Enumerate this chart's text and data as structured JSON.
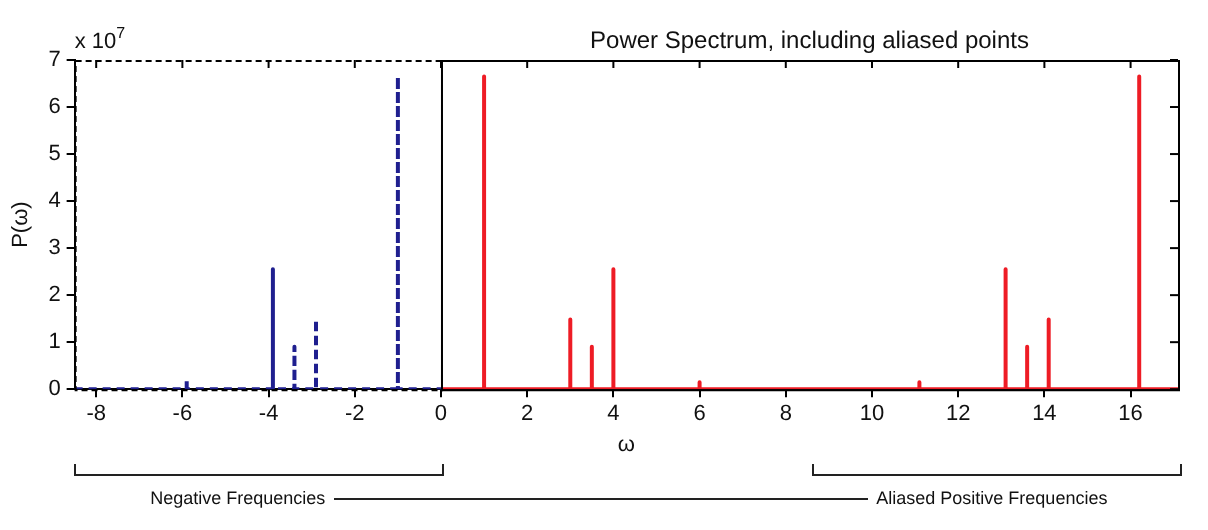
{
  "chart_data": {
    "type": "line",
    "title": "Power Spectrum, including aliased points",
    "xlabel": "ω",
    "ylabel": "P(ω)",
    "annotations": [
      "x 10$^{7}$",
      "Negative Frequencies",
      "Aliased Positive Frequencies"
    ],
    "xlim": [
      -8.5,
      17.1
    ],
    "xticks": [
      -8,
      -6,
      -4,
      -2,
      0,
      2,
      4,
      6,
      8,
      10,
      12,
      14,
      16
    ],
    "ylim": [
      0,
      7
    ],
    "yticks": [
      0,
      1,
      2,
      3,
      4,
      5,
      6,
      7
    ],
    "grid": false,
    "legend": false,
    "marker": "none",
    "series": [
      {
        "color": "#1f1f8f",
        "line_style": "dashed",
        "x": [
          -8.5,
          -5.9,
          -5.9,
          -5.9,
          -3.9,
          -3.9,
          -3.9,
          -3.4,
          -3.4,
          -3.4,
          -2.9,
          -2.9,
          -2.9,
          -1,
          -1,
          -1,
          0
        ],
        "values": [
          0,
          0,
          0.2,
          0,
          0,
          2.55,
          0,
          0,
          0.9,
          0,
          0,
          1.48,
          0,
          0,
          6.65,
          0,
          0
        ]
      },
      {
        "color": "#ee1c25",
        "line_style": "solid",
        "x": [
          0,
          1,
          1,
          1,
          3,
          3,
          3,
          3.5,
          3.5,
          3.5,
          4,
          4,
          4,
          6,
          6,
          6,
          11.1,
          11.1,
          11.1,
          13.1,
          13.1,
          13.1,
          13.6,
          13.6,
          13.6,
          14.1,
          14.1,
          14.1,
          16.2,
          16.2,
          16.2,
          17.1
        ],
        "values": [
          0,
          0,
          6.65,
          0,
          0,
          1.48,
          0,
          0,
          0.9,
          0,
          0,
          2.55,
          0,
          0,
          0.15,
          0,
          0,
          0.15,
          0,
          0,
          2.55,
          0,
          0,
          0.9,
          0,
          0,
          1.48,
          0,
          0,
          6.65,
          0,
          0
        ]
      }
    ]
  }
}
